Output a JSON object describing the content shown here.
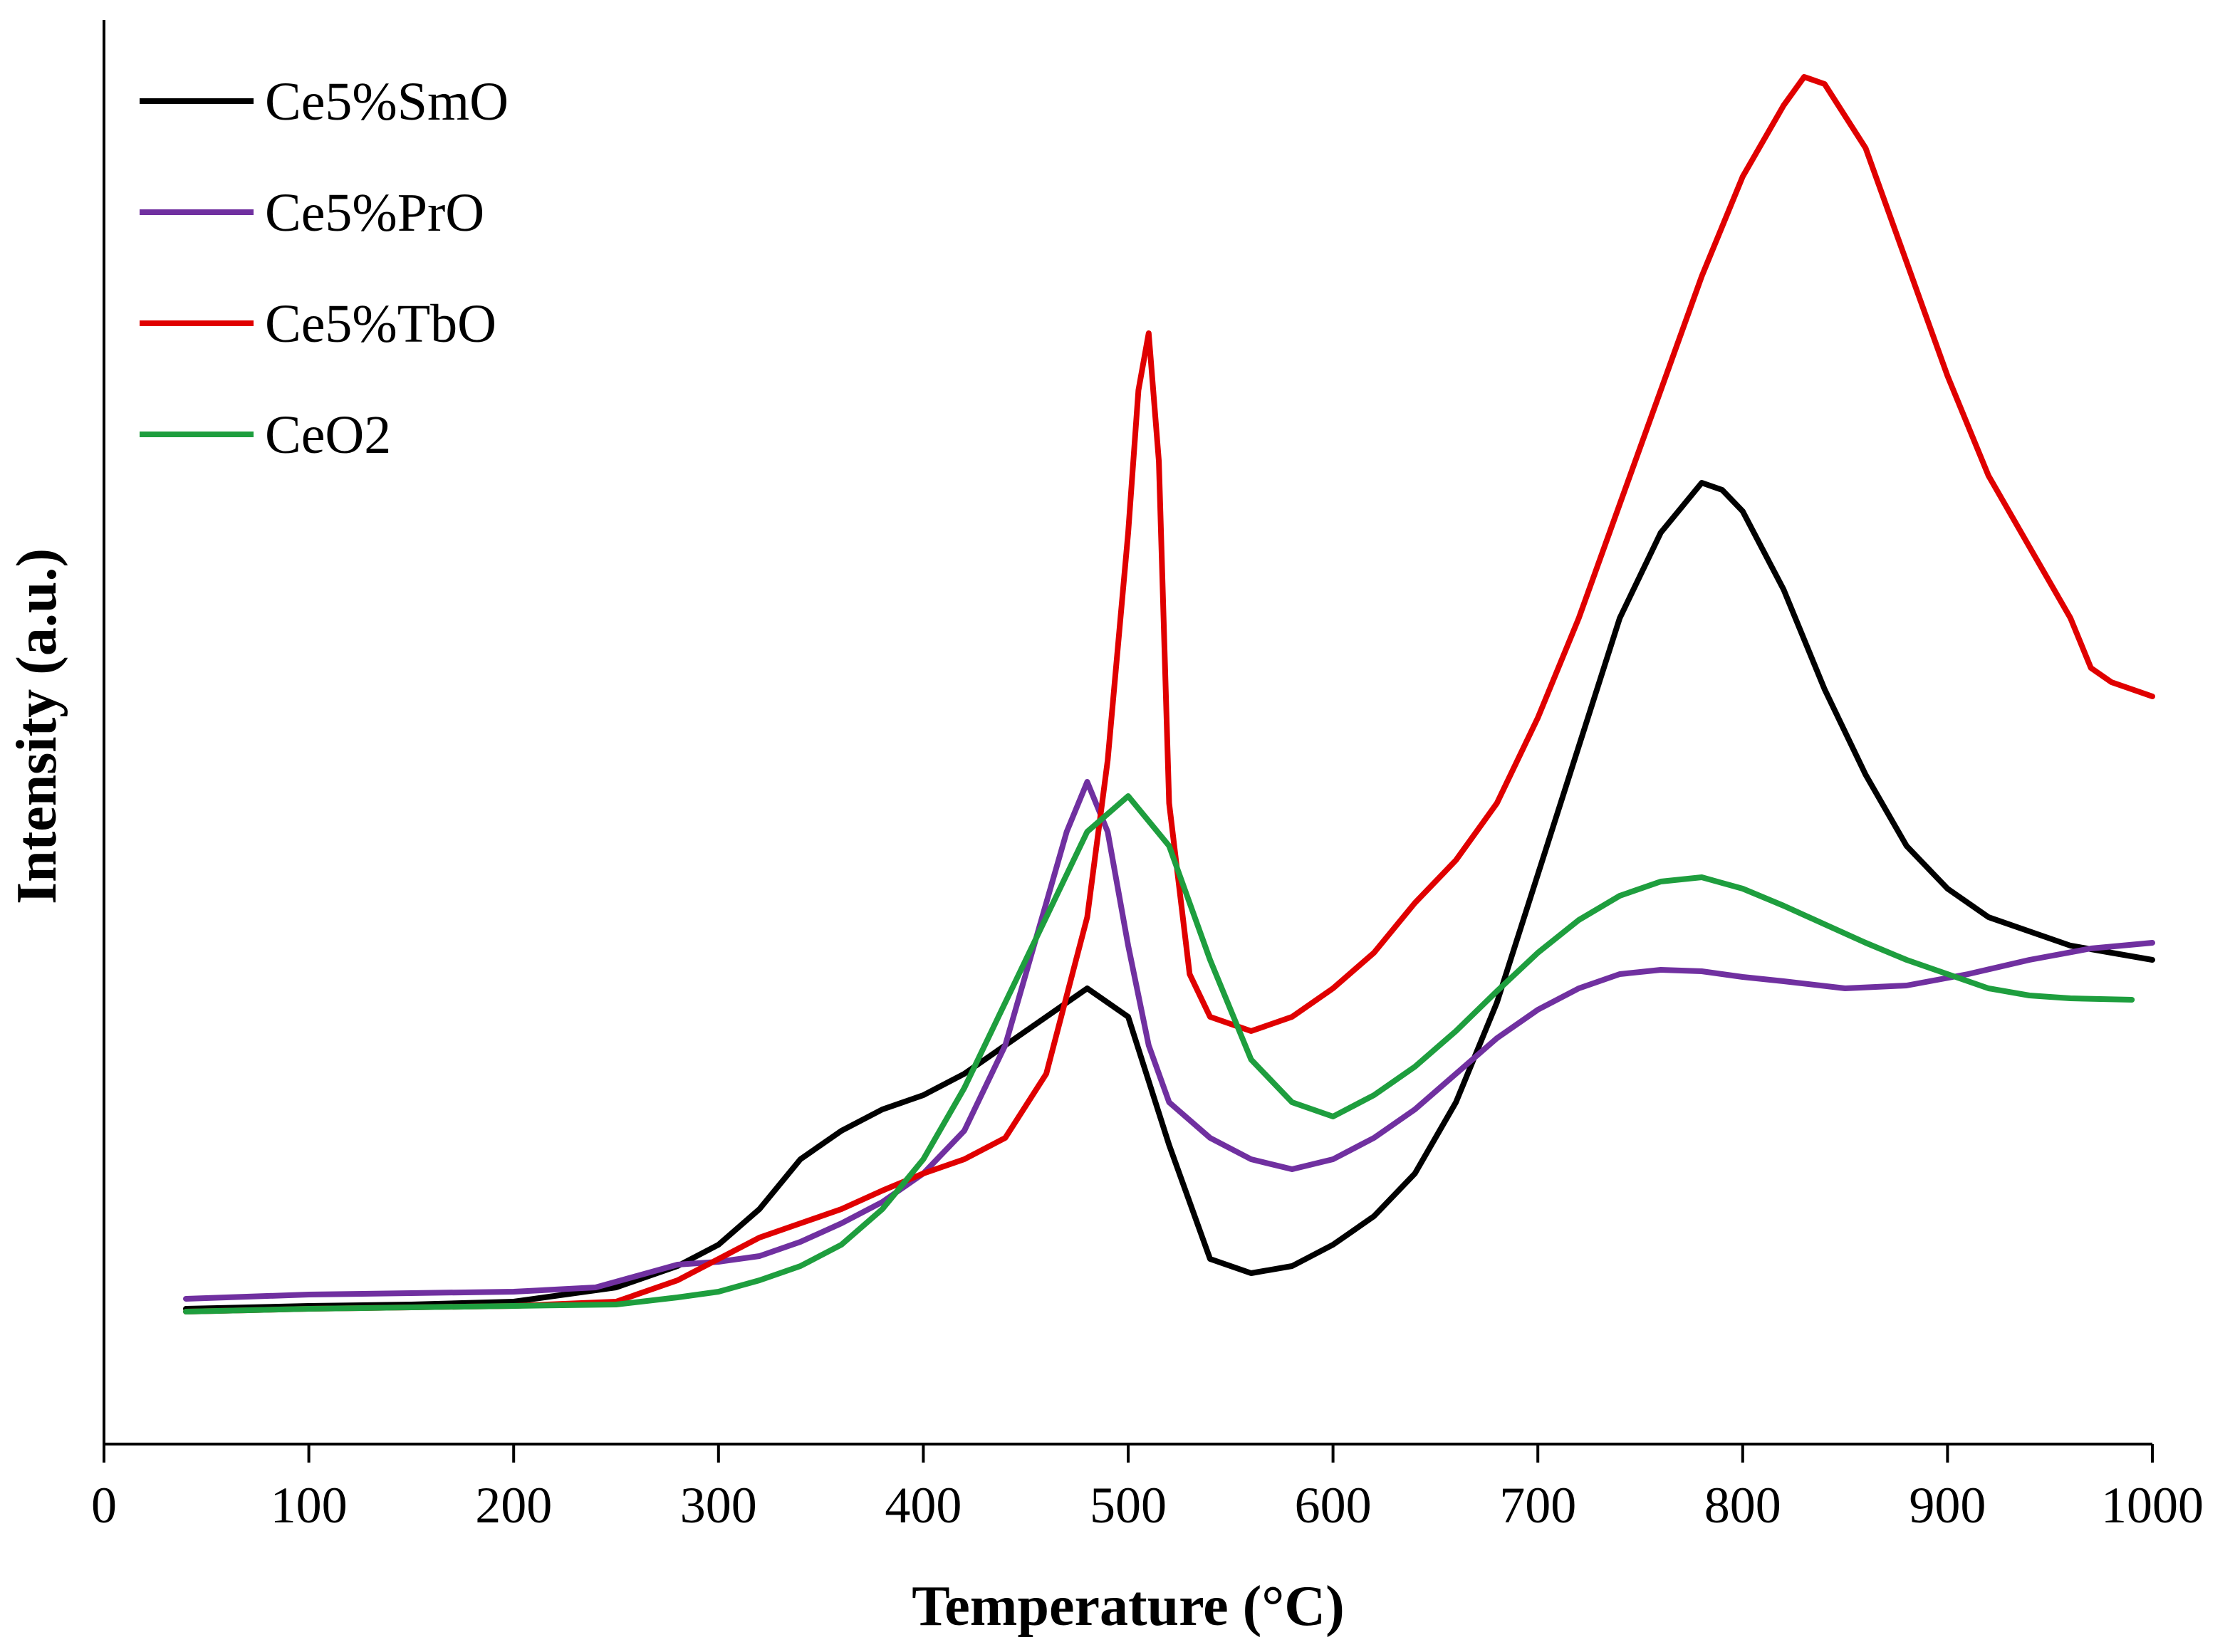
{
  "chart_data": {
    "type": "line",
    "title": "",
    "xlabel": "Temperature (°C)",
    "ylabel": "Intensity (a.u.)",
    "xlim": [
      0,
      1000
    ],
    "ylim": [
      0,
      1
    ],
    "xticks": [
      0,
      100,
      200,
      300,
      400,
      500,
      600,
      700,
      800,
      900,
      1000
    ],
    "yticks_shown": false,
    "grid": false,
    "legend_position": "top-left",
    "series": [
      {
        "name": "Ce5%SmO",
        "color": "#000000",
        "x": [
          40,
          100,
          150,
          200,
          250,
          280,
          300,
          320,
          340,
          360,
          380,
          400,
          420,
          440,
          460,
          480,
          500,
          520,
          540,
          560,
          580,
          600,
          620,
          640,
          660,
          680,
          700,
          720,
          740,
          760,
          780,
          790,
          800,
          820,
          840,
          860,
          880,
          900,
          920,
          940,
          960,
          980,
          1000
        ],
        "y": [
          0.095,
          0.097,
          0.098,
          0.1,
          0.11,
          0.125,
          0.14,
          0.165,
          0.2,
          0.22,
          0.235,
          0.245,
          0.26,
          0.28,
          0.3,
          0.32,
          0.3,
          0.21,
          0.13,
          0.12,
          0.125,
          0.14,
          0.16,
          0.19,
          0.24,
          0.31,
          0.4,
          0.49,
          0.58,
          0.64,
          0.675,
          0.67,
          0.655,
          0.6,
          0.53,
          0.47,
          0.42,
          0.39,
          0.37,
          0.36,
          0.35,
          0.345,
          0.34
        ]
      },
      {
        "name": "Ce5%PrO",
        "color": "#7030A0",
        "x": [
          40,
          100,
          150,
          200,
          240,
          260,
          280,
          300,
          320,
          340,
          360,
          380,
          400,
          420,
          440,
          460,
          470,
          480,
          490,
          500,
          510,
          520,
          540,
          560,
          580,
          600,
          620,
          640,
          660,
          680,
          700,
          720,
          740,
          760,
          780,
          800,
          820,
          850,
          880,
          910,
          940,
          970,
          1000
        ],
        "y": [
          0.102,
          0.105,
          0.106,
          0.107,
          0.11,
          0.118,
          0.126,
          0.128,
          0.132,
          0.142,
          0.155,
          0.17,
          0.19,
          0.22,
          0.28,
          0.38,
          0.43,
          0.465,
          0.43,
          0.35,
          0.28,
          0.24,
          0.215,
          0.2,
          0.193,
          0.2,
          0.215,
          0.235,
          0.26,
          0.285,
          0.305,
          0.32,
          0.33,
          0.333,
          0.332,
          0.328,
          0.325,
          0.32,
          0.322,
          0.33,
          0.34,
          0.348,
          0.352
        ]
      },
      {
        "name": "Ce5%TbO",
        "color": "#E00000",
        "x": [
          40,
          100,
          150,
          200,
          250,
          280,
          300,
          320,
          340,
          360,
          380,
          400,
          420,
          440,
          460,
          480,
          490,
          500,
          505,
          510,
          515,
          520,
          530,
          540,
          560,
          580,
          600,
          620,
          640,
          660,
          680,
          700,
          720,
          740,
          760,
          780,
          800,
          820,
          830,
          840,
          860,
          880,
          900,
          920,
          940,
          960,
          970,
          980,
          1000
        ],
        "y": [
          0.093,
          0.095,
          0.096,
          0.097,
          0.1,
          0.115,
          0.13,
          0.145,
          0.155,
          0.165,
          0.178,
          0.19,
          0.2,
          0.215,
          0.26,
          0.37,
          0.48,
          0.64,
          0.74,
          0.78,
          0.69,
          0.45,
          0.33,
          0.3,
          0.29,
          0.3,
          0.32,
          0.345,
          0.38,
          0.41,
          0.45,
          0.51,
          0.58,
          0.66,
          0.74,
          0.82,
          0.89,
          0.94,
          0.96,
          0.955,
          0.91,
          0.83,
          0.75,
          0.68,
          0.63,
          0.58,
          0.545,
          0.535,
          0.525
        ]
      },
      {
        "name": "CeO2",
        "color": "#1E9E3E",
        "x": [
          40,
          100,
          150,
          200,
          250,
          280,
          300,
          320,
          340,
          360,
          380,
          400,
          420,
          440,
          460,
          480,
          500,
          520,
          540,
          560,
          580,
          600,
          620,
          640,
          660,
          680,
          700,
          720,
          740,
          760,
          780,
          800,
          820,
          840,
          860,
          880,
          900,
          920,
          940,
          960,
          990
        ],
        "y": [
          0.093,
          0.095,
          0.096,
          0.097,
          0.098,
          0.103,
          0.107,
          0.115,
          0.125,
          0.14,
          0.165,
          0.2,
          0.25,
          0.31,
          0.37,
          0.43,
          0.455,
          0.42,
          0.34,
          0.27,
          0.24,
          0.23,
          0.245,
          0.265,
          0.29,
          0.318,
          0.345,
          0.368,
          0.385,
          0.395,
          0.398,
          0.39,
          0.378,
          0.365,
          0.352,
          0.34,
          0.33,
          0.32,
          0.315,
          0.313,
          0.312
        ]
      }
    ]
  }
}
